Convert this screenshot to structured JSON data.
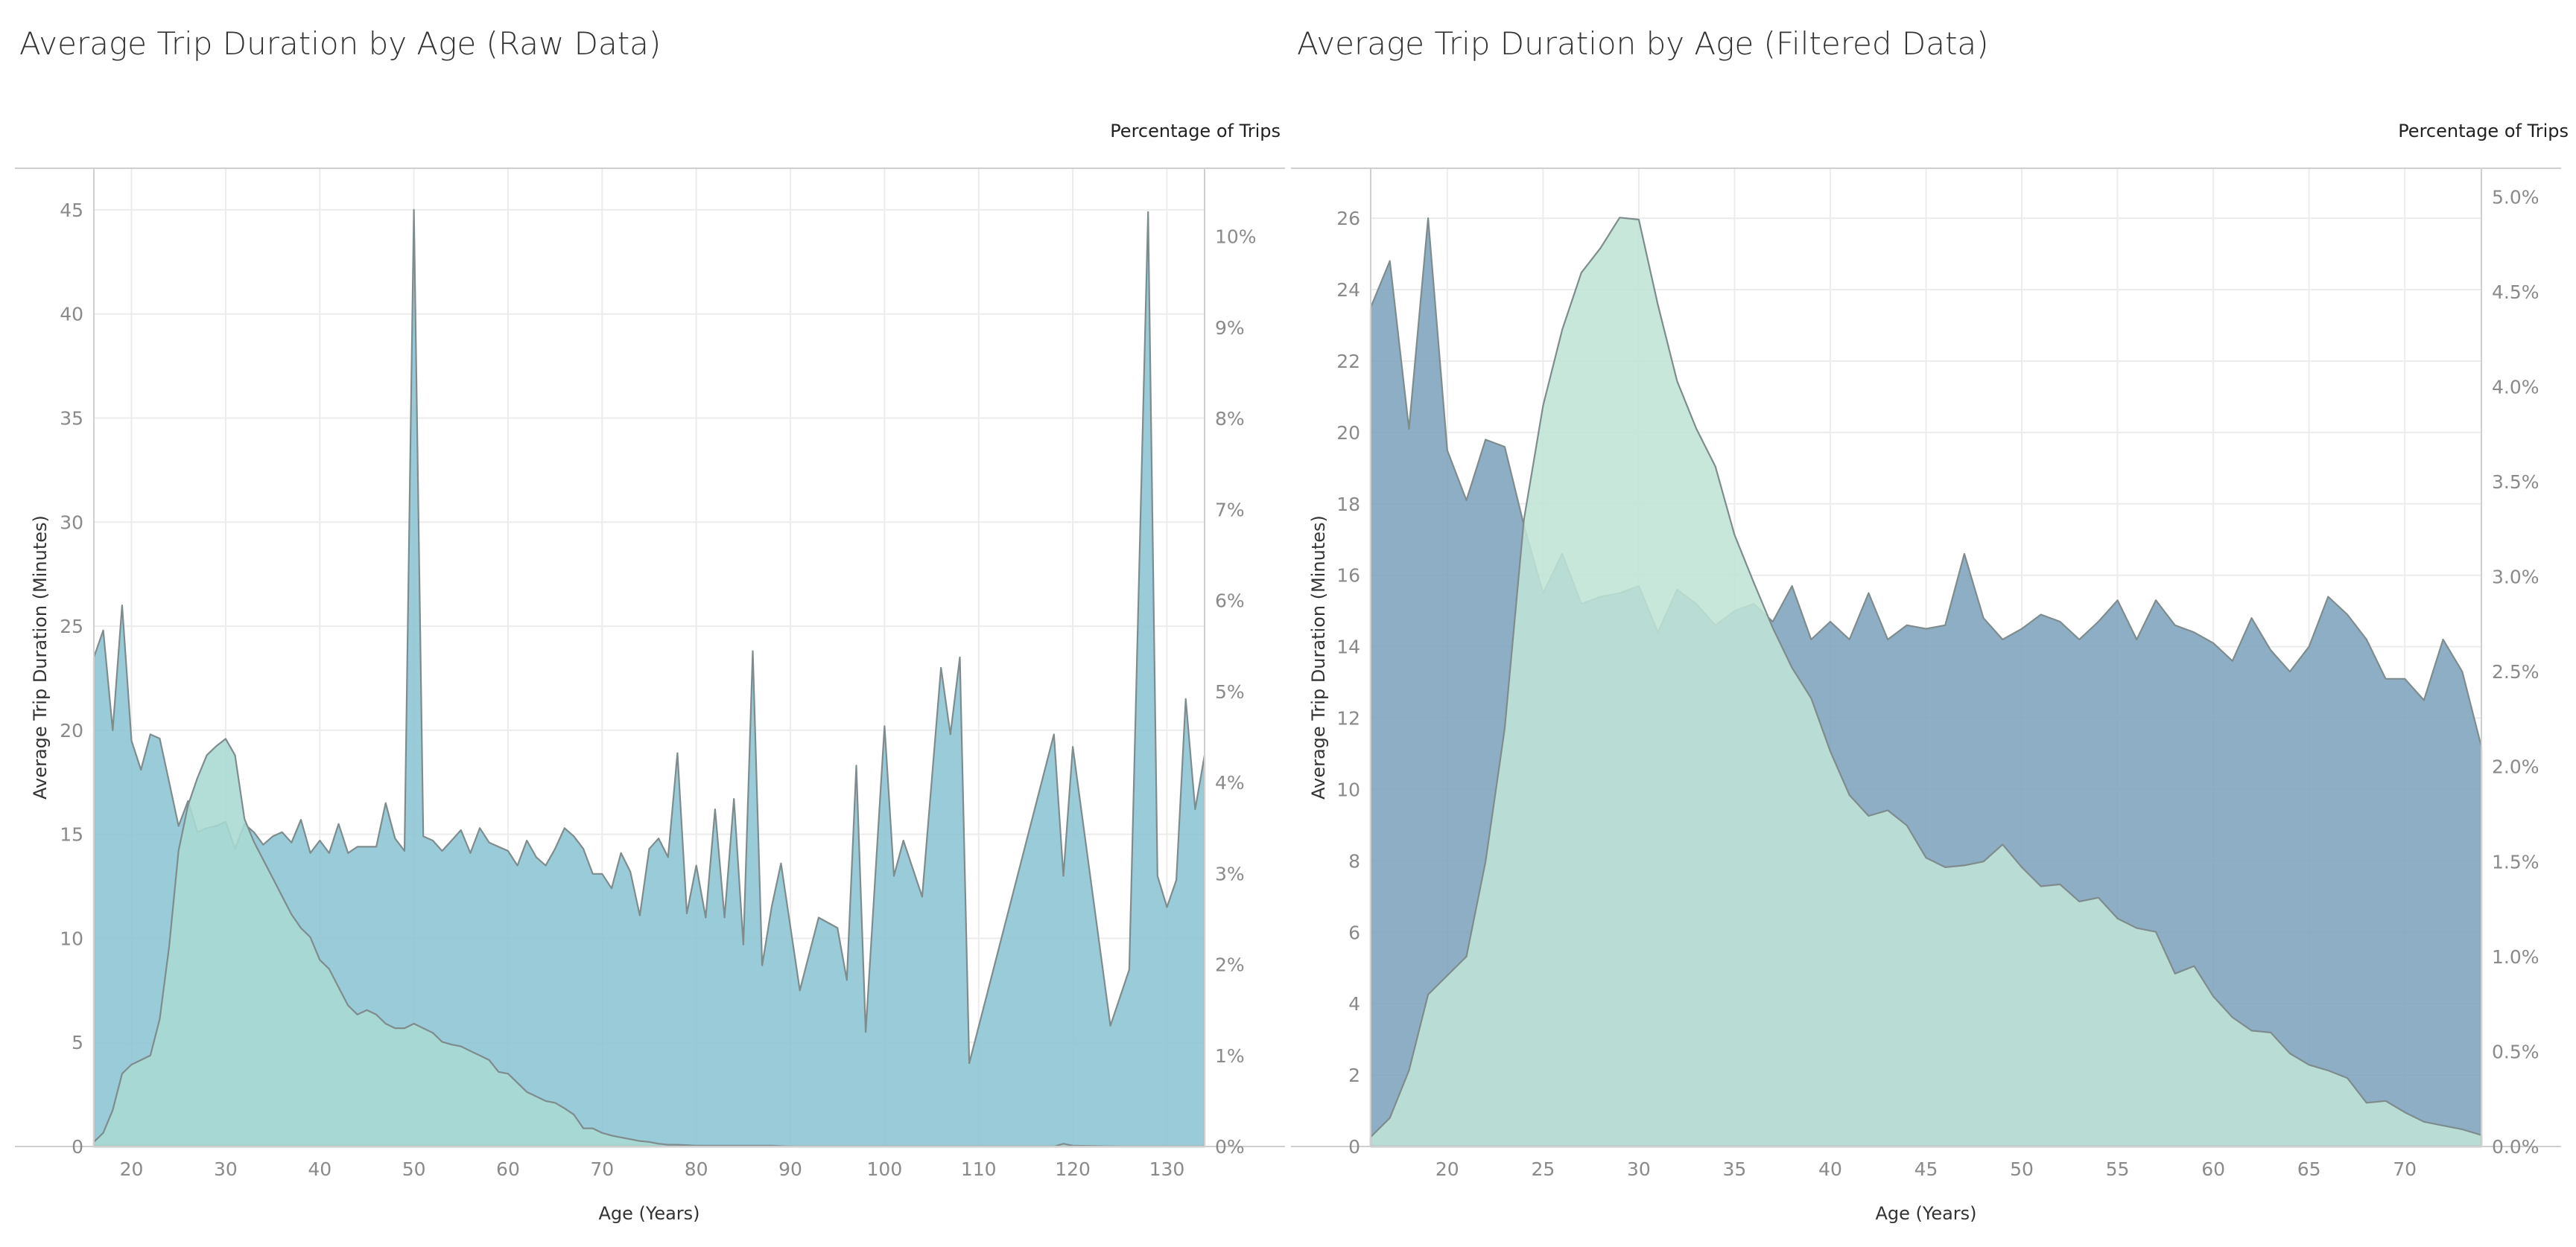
{
  "colors": {
    "background": "#ffffff",
    "raw_duration_fill": "#8cc4d4",
    "raw_share_fill": "#a9d9d2",
    "filtered_duration_fill": "#7da3bd",
    "filtered_share_fill": "#bfe4d6",
    "outline": "#7f8c8d",
    "grid": "#ececec",
    "axis": "#cfcfcf"
  },
  "chart_data": [
    {
      "type": "area",
      "title": "Average Trip Duration by Age (Raw Data)",
      "xlabel": "Age (Years)",
      "ylabel": "Average Trip Duration (Minutes)",
      "y2label": "Percentage of Trips",
      "grid": true,
      "xlim": [
        16,
        134
      ],
      "ylim": [
        0,
        47
      ],
      "y2lim": [
        0,
        10.75
      ],
      "xticks": [
        20,
        30,
        40,
        50,
        60,
        70,
        80,
        90,
        100,
        110,
        120,
        130
      ],
      "yticks": [
        0,
        5,
        10,
        15,
        20,
        25,
        30,
        35,
        40,
        45
      ],
      "y2ticks": [
        0,
        1,
        2,
        3,
        4,
        5,
        6,
        7,
        8,
        9,
        10
      ],
      "y2tick_labels": [
        "0%",
        "1%",
        "2%",
        "3%",
        "4%",
        "5%",
        "6%",
        "7%",
        "8%",
        "9%",
        "10%"
      ],
      "series": [
        {
          "name": "Average Trip Duration",
          "axis": "left",
          "x": [
            16,
            17,
            18,
            19,
            20,
            21,
            22,
            23,
            24,
            25,
            26,
            27,
            28,
            29,
            30,
            31,
            32,
            33,
            34,
            35,
            36,
            37,
            38,
            39,
            40,
            41,
            42,
            43,
            44,
            45,
            46,
            47,
            48,
            49,
            50,
            51,
            52,
            53,
            54,
            55,
            56,
            57,
            58,
            59,
            60,
            61,
            62,
            63,
            64,
            65,
            66,
            67,
            68,
            69,
            70,
            71,
            72,
            73,
            74,
            75,
            76,
            77,
            78,
            79,
            80,
            81,
            82,
            83,
            84,
            85,
            86,
            87,
            88,
            89,
            91,
            93,
            95,
            96,
            97,
            98,
            100,
            101,
            102,
            104,
            106,
            107,
            108,
            109,
            118,
            119,
            120,
            124,
            126,
            128,
            129,
            130,
            131,
            132,
            133,
            134
          ],
          "values": [
            23.5,
            24.8,
            20.0,
            26.0,
            19.5,
            18.1,
            19.8,
            19.6,
            17.5,
            15.4,
            16.6,
            15.1,
            15.3,
            15.4,
            15.6,
            14.3,
            15.5,
            15.1,
            14.5,
            14.9,
            15.1,
            14.6,
            15.7,
            14.1,
            14.7,
            14.1,
            15.5,
            14.1,
            14.4,
            14.4,
            14.4,
            16.5,
            14.8,
            14.2,
            45.0,
            14.9,
            14.7,
            14.2,
            14.7,
            15.2,
            14.1,
            15.3,
            14.6,
            14.4,
            14.2,
            13.5,
            14.7,
            13.9,
            13.5,
            14.3,
            15.3,
            14.9,
            14.3,
            13.1,
            13.1,
            12.4,
            14.1,
            13.2,
            11.1,
            14.3,
            14.8,
            13.9,
            18.9,
            11.2,
            13.5,
            11.0,
            16.2,
            11.0,
            16.7,
            9.7,
            23.8,
            8.7,
            11.5,
            13.6,
            7.5,
            11.0,
            10.5,
            8.0,
            18.3,
            5.5,
            20.2,
            13.0,
            14.7,
            12.0,
            23.0,
            19.8,
            23.5,
            4.0,
            19.8,
            13.0,
            19.2,
            5.8,
            8.5,
            44.9,
            13.0,
            11.5,
            12.8,
            21.5,
            16.2,
            18.8
          ]
        },
        {
          "name": "Percentage of Trips",
          "axis": "right",
          "x": [
            16,
            17,
            18,
            19,
            20,
            21,
            22,
            23,
            24,
            25,
            26,
            27,
            28,
            29,
            30,
            31,
            32,
            33,
            34,
            35,
            36,
            37,
            38,
            39,
            40,
            41,
            42,
            43,
            44,
            45,
            46,
            47,
            48,
            49,
            50,
            51,
            52,
            53,
            54,
            55,
            56,
            57,
            58,
            59,
            60,
            61,
            62,
            63,
            64,
            65,
            66,
            67,
            68,
            69,
            70,
            71,
            72,
            73,
            74,
            75,
            76,
            77,
            78,
            80,
            82,
            84,
            86,
            88,
            90,
            95,
            100,
            110,
            118,
            119,
            120,
            125,
            134
          ],
          "values": [
            0.05,
            0.15,
            0.4,
            0.8,
            0.9,
            0.95,
            1.0,
            1.4,
            2.2,
            3.25,
            3.75,
            4.05,
            4.3,
            4.4,
            4.48,
            4.3,
            3.6,
            3.35,
            3.15,
            2.95,
            2.75,
            2.55,
            2.4,
            2.3,
            2.05,
            1.95,
            1.75,
            1.55,
            1.45,
            1.5,
            1.45,
            1.35,
            1.3,
            1.3,
            1.35,
            1.3,
            1.25,
            1.15,
            1.12,
            1.1,
            1.05,
            1.0,
            0.95,
            0.82,
            0.8,
            0.7,
            0.6,
            0.55,
            0.5,
            0.48,
            0.42,
            0.35,
            0.2,
            0.2,
            0.15,
            0.12,
            0.1,
            0.08,
            0.06,
            0.05,
            0.03,
            0.02,
            0.02,
            0.01,
            0.01,
            0.01,
            0.01,
            0.01,
            0.0,
            0.0,
            0.0,
            0.0,
            0.0,
            0.03,
            0.01,
            0.0,
            0.0
          ]
        }
      ]
    },
    {
      "type": "area",
      "title": "Average Trip Duration by Age (Filtered Data)",
      "xlabel": "Age (Years)",
      "ylabel": "Average Trip Duration (Minutes)",
      "y2label": "Percentage of Trips",
      "grid": true,
      "xlim": [
        16,
        74
      ],
      "ylim": [
        0,
        27.4
      ],
      "y2lim": [
        0,
        5.15
      ],
      "xticks": [
        20,
        25,
        30,
        35,
        40,
        45,
        50,
        55,
        60,
        65,
        70
      ],
      "yticks": [
        0,
        2,
        4,
        6,
        8,
        10,
        12,
        14,
        16,
        18,
        20,
        22,
        24,
        26
      ],
      "y2ticks": [
        0,
        0.5,
        1.0,
        1.5,
        2.0,
        2.5,
        3.0,
        3.5,
        4.0,
        4.5,
        5.0
      ],
      "y2tick_labels": [
        "0.0%",
        "0.5%",
        "1.0%",
        "1.5%",
        "2.0%",
        "2.5%",
        "3.0%",
        "3.5%",
        "4.0%",
        "4.5%",
        "5.0%"
      ],
      "series": [
        {
          "name": "Average Trip Duration",
          "axis": "left",
          "x": [
            16,
            17,
            18,
            19,
            20,
            21,
            22,
            23,
            24,
            25,
            26,
            27,
            28,
            29,
            30,
            31,
            32,
            33,
            34,
            35,
            36,
            37,
            38,
            39,
            40,
            41,
            42,
            43,
            44,
            45,
            46,
            47,
            48,
            49,
            50,
            51,
            52,
            53,
            54,
            55,
            56,
            57,
            58,
            59,
            60,
            61,
            62,
            63,
            64,
            65,
            66,
            67,
            68,
            69,
            70,
            71,
            72,
            73,
            74
          ],
          "values": [
            23.5,
            24.8,
            20.1,
            26.0,
            19.5,
            18.1,
            19.8,
            19.6,
            17.4,
            15.5,
            16.6,
            15.2,
            15.4,
            15.5,
            15.7,
            14.4,
            15.6,
            15.2,
            14.6,
            15.0,
            15.2,
            14.7,
            15.7,
            14.2,
            14.7,
            14.2,
            15.5,
            14.2,
            14.6,
            14.5,
            14.6,
            16.6,
            14.8,
            14.2,
            14.5,
            14.9,
            14.7,
            14.2,
            14.7,
            15.3,
            14.2,
            15.3,
            14.6,
            14.4,
            14.1,
            13.6,
            14.8,
            13.9,
            13.3,
            14.0,
            15.4,
            14.9,
            14.2,
            13.1,
            13.1,
            12.5,
            14.2,
            13.3,
            11.2
          ]
        },
        {
          "name": "Percentage of Trips",
          "axis": "right",
          "x": [
            16,
            17,
            18,
            19,
            20,
            21,
            22,
            23,
            24,
            25,
            26,
            27,
            28,
            29,
            30,
            31,
            32,
            33,
            34,
            35,
            36,
            37,
            38,
            39,
            40,
            41,
            42,
            43,
            44,
            45,
            46,
            47,
            48,
            49,
            50,
            51,
            52,
            53,
            54,
            55,
            56,
            57,
            58,
            59,
            60,
            61,
            62,
            63,
            64,
            65,
            66,
            67,
            68,
            69,
            70,
            71,
            72,
            73,
            74
          ],
          "values": [
            0.05,
            0.15,
            0.4,
            0.8,
            0.9,
            1.0,
            1.5,
            2.2,
            3.3,
            3.9,
            4.3,
            4.6,
            4.73,
            4.89,
            4.88,
            4.43,
            4.03,
            3.78,
            3.58,
            3.22,
            2.97,
            2.73,
            2.52,
            2.36,
            2.08,
            1.85,
            1.74,
            1.77,
            1.69,
            1.52,
            1.47,
            1.48,
            1.5,
            1.59,
            1.47,
            1.37,
            1.38,
            1.29,
            1.31,
            1.2,
            1.15,
            1.13,
            0.91,
            0.95,
            0.79,
            0.68,
            0.61,
            0.6,
            0.49,
            0.43,
            0.4,
            0.36,
            0.23,
            0.24,
            0.18,
            0.13,
            0.11,
            0.09,
            0.06
          ]
        }
      ]
    }
  ]
}
